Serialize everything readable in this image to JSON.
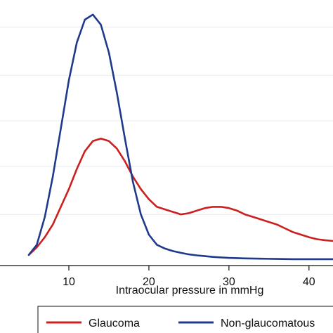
{
  "chart_data": {
    "type": "line",
    "xlabel": "Intraocular pressure in mmHg",
    "ylabel": "",
    "xlim": [
      1.4,
      43
    ],
    "ylim": [
      0,
      1.0
    ],
    "x_ticks": [
      10,
      20,
      30,
      40
    ],
    "x_tick_labels": [
      "10",
      "20",
      "30",
      "40"
    ],
    "y_gridlines": [
      0.18,
      0.37,
      0.55,
      0.73,
      0.92
    ],
    "grid": true,
    "legend_position": "bottom",
    "series": [
      {
        "name": "Glaucoma",
        "color": "#cc1f1f",
        "x": [
          5,
          6,
          7,
          8,
          9,
          10,
          11,
          12,
          13,
          14,
          15,
          16,
          17,
          18,
          19,
          20,
          21,
          22,
          23,
          24,
          25,
          26,
          27,
          28,
          29,
          30,
          31,
          32,
          33,
          34,
          35,
          36,
          37,
          38,
          39,
          40,
          41,
          42,
          43
        ],
        "values": [
          0.02,
          0.05,
          0.09,
          0.14,
          0.21,
          0.28,
          0.36,
          0.43,
          0.47,
          0.48,
          0.47,
          0.44,
          0.39,
          0.33,
          0.28,
          0.24,
          0.21,
          0.2,
          0.19,
          0.18,
          0.185,
          0.195,
          0.205,
          0.21,
          0.21,
          0.205,
          0.195,
          0.18,
          0.17,
          0.16,
          0.15,
          0.14,
          0.125,
          0.11,
          0.1,
          0.09,
          0.082,
          0.078,
          0.075
        ]
      },
      {
        "name": "Non-glaucomatous",
        "color": "#1f3a8c",
        "x": [
          5,
          6,
          7,
          8,
          9,
          10,
          11,
          12,
          13,
          14,
          15,
          16,
          17,
          18,
          19,
          20,
          21,
          22,
          23,
          24,
          25,
          26,
          27,
          28,
          29,
          30,
          32,
          34,
          36,
          38,
          40,
          42,
          43
        ],
        "values": [
          0.02,
          0.06,
          0.17,
          0.33,
          0.52,
          0.71,
          0.86,
          0.95,
          0.97,
          0.93,
          0.82,
          0.66,
          0.48,
          0.31,
          0.18,
          0.1,
          0.06,
          0.045,
          0.035,
          0.028,
          0.022,
          0.018,
          0.015,
          0.012,
          0.01,
          0.008,
          0.006,
          0.005,
          0.004,
          0.003,
          0.003,
          0.003,
          0.003
        ]
      }
    ]
  }
}
